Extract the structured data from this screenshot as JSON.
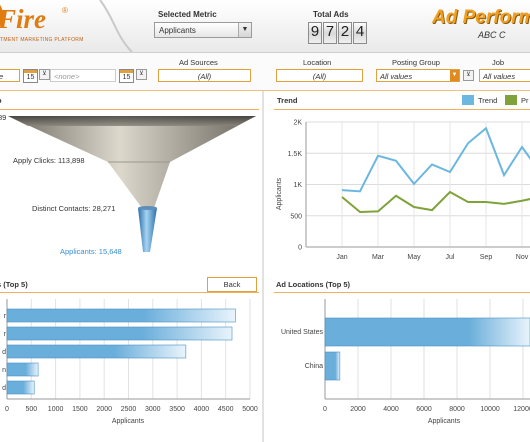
{
  "header": {
    "logo_text": "Fire",
    "logo_reg": "®",
    "logo_tagline": "TMENT MARKETING PLATFORM",
    "selected_metric_label": "Selected Metric",
    "selected_metric_value": "Applicants",
    "total_ads_label": "Total Ads",
    "total_ads_digits": [
      "9",
      "7",
      "2",
      "4"
    ],
    "app_title": "Ad Perform",
    "app_subtitle": "ABC C"
  },
  "filters": {
    "date_from_value": "e",
    "date_badge_from": "15",
    "date_to_placeholder": "<none>",
    "date_badge_to": "15",
    "ad_sources_label": "Ad Sources",
    "ad_sources_value": "(All)",
    "location_label": "Location",
    "location_value": "(All)",
    "posting_group_label": "Posting Group",
    "posting_group_value": "All values",
    "job_category_label": "Job Catego",
    "job_category_value": "All values"
  },
  "funnel_panel": {
    "title": "o",
    "top_label_fragment": "89",
    "apply_clicks_label": "Apply Clicks: 113,898",
    "distinct_contacts_label": "Distinct Contacts: 28,271",
    "applicants_label": "Applicants: 15,648"
  },
  "trend_panel": {
    "title": "Trend",
    "legend": [
      {
        "name": "Trend",
        "color": "#6bb7e0"
      },
      {
        "name": "Pr",
        "color": "#7fa33a"
      }
    ],
    "ylabel": "Applicants"
  },
  "ads_panel": {
    "title": "s (Top 5)",
    "back_label": "Back",
    "row_label_fragments": [
      "r",
      "r",
      "d",
      "n",
      "d"
    ],
    "xlabel": "Applicants"
  },
  "locations_panel": {
    "title": "Ad Locations (Top 5)",
    "xlabel": "Applicants"
  },
  "chart_data": [
    {
      "type": "line",
      "title": "Trend",
      "categories": [
        "Jan",
        "Feb",
        "Mar",
        "Apr",
        "May",
        "Jun",
        "Jul",
        "Aug",
        "Sep",
        "Oct",
        "Nov",
        "Dec"
      ],
      "ylabel": "Applicants",
      "ylim": [
        0,
        2000
      ],
      "yticks": [
        "0",
        "500",
        "1K",
        "1.5K",
        "2K"
      ],
      "ytick_values": [
        0,
        500,
        1000,
        1500,
        2000
      ],
      "xtick_labels": [
        "Jan",
        "Mar",
        "May",
        "Jul",
        "Sep",
        "Nov"
      ],
      "xtick_indices": [
        0,
        2,
        4,
        6,
        8,
        10
      ],
      "series": [
        {
          "name": "Trend",
          "color": "#6bb7e0",
          "values": [
            910,
            890,
            1460,
            1380,
            1010,
            1320,
            1200,
            1660,
            1900,
            1150,
            1600,
            1200
          ]
        },
        {
          "name": "Pr",
          "color": "#7fa33a",
          "values": [
            800,
            560,
            570,
            820,
            640,
            590,
            880,
            720,
            720,
            690,
            740,
            800
          ]
        }
      ],
      "grid": true,
      "legend": "top-right"
    },
    {
      "type": "bar",
      "orientation": "horizontal",
      "title": "s (Top 5)",
      "categories": [
        "r",
        "r",
        "d",
        "n",
        "d"
      ],
      "values": [
        4700,
        4630,
        3680,
        640,
        560
      ],
      "xlabel": "Applicants",
      "xlim": [
        0,
        5000
      ],
      "xticks": [
        0,
        500,
        1000,
        1500,
        2000,
        2500,
        3000,
        3500,
        4000,
        4500,
        5000
      ],
      "color": "#6aaedb"
    },
    {
      "type": "bar",
      "orientation": "horizontal",
      "title": "Ad Locations (Top 5)",
      "categories": [
        "United States",
        "China"
      ],
      "values": [
        14500,
        900
      ],
      "xlabel": "Applicants",
      "xlim": [
        0,
        14000
      ],
      "xticks": [
        "0",
        "2000",
        "4000",
        "6000",
        "8000",
        "10000",
        "12000",
        "14"
      ],
      "xtick_values": [
        0,
        2000,
        4000,
        6000,
        8000,
        10000,
        12000,
        14000
      ],
      "color": "#6aaedb"
    },
    {
      "type": "funnel",
      "title": "o",
      "stages": [
        {
          "label": "",
          "value": 89
        },
        {
          "label": "Apply Clicks",
          "value": 113898
        },
        {
          "label": "Distinct Contacts",
          "value": 28271
        },
        {
          "label": "Applicants",
          "value": 15648
        }
      ]
    }
  ]
}
